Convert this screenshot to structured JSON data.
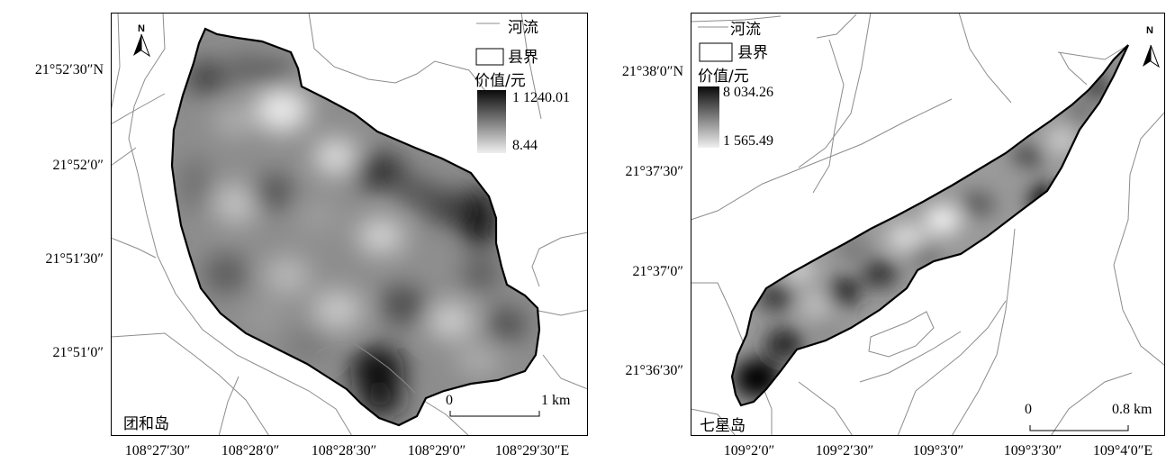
{
  "left_map": {
    "island_name": "团和岛",
    "legend": {
      "river_label": "河流",
      "county_label": "县界",
      "value_title": "价值/元",
      "max_value": "1 1240.01",
      "min_value": "8.44"
    },
    "scale": {
      "start": "0",
      "end": "1 km"
    },
    "north_label": "N",
    "lat_ticks": [
      "21°52′30″N",
      "21°52′0″",
      "21°51′30″",
      "21°51′0″"
    ],
    "lon_ticks": [
      "108°27′30″",
      "108°28′0″",
      "108°28′30″",
      "108°29′0″",
      "108°29′30″E"
    ]
  },
  "right_map": {
    "island_name": "七星岛",
    "legend": {
      "river_label": "河流",
      "county_label": "县界",
      "value_title": "价值/元",
      "max_value": "8 034.26",
      "min_value": "1 565.49"
    },
    "scale": {
      "start": "0",
      "end": "0.8 km"
    },
    "north_label": "N",
    "lat_ticks": [
      "21°38′0″N",
      "21°37′30″",
      "21°37′0″",
      "21°36′30″"
    ],
    "lon_ticks": [
      "109°2′0″",
      "109°2′30″",
      "109°3′0″",
      "109°3′30″",
      "109°4′0″E"
    ]
  },
  "colors": {
    "high": "#0a0a0a",
    "low": "#f4f4f4",
    "river": "#8c8c8c",
    "boundary": "#000000"
  }
}
